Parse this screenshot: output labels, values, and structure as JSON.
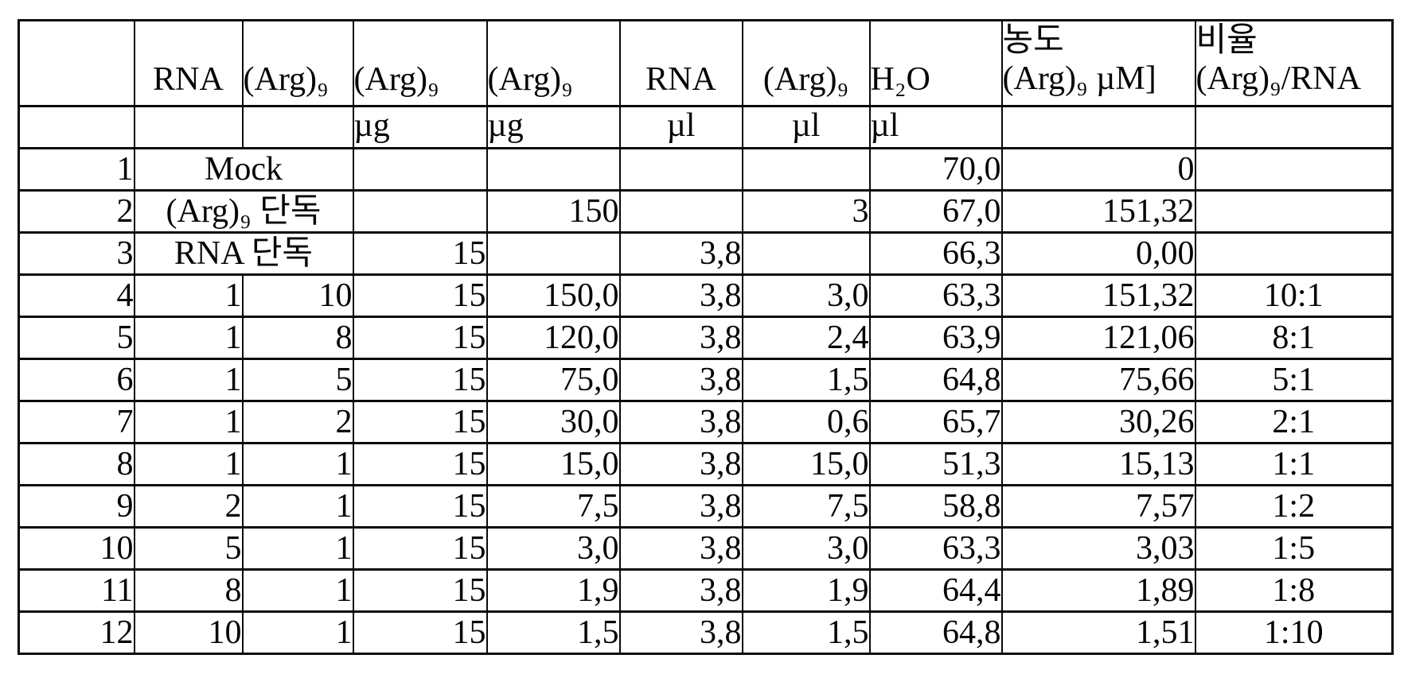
{
  "table": {
    "header": {
      "corner": "",
      "corner_units": "",
      "col_rna": "RNA",
      "col_arg9": "(Arg)₉",
      "col_arg9_ug_1": "(Arg)₉",
      "col_arg9_ug_2": "(Arg)₉",
      "col_rna_ul": "RNA",
      "col_arg9_ul": "(Arg)₉",
      "col_h2o": "H₂O",
      "col_conc_line1": "농도",
      "col_conc_line2": "(Arg)₉ µM]",
      "col_ratio_line1": "비율",
      "col_ratio_line2": "(Arg)₉/RNA",
      "units": [
        "",
        "",
        "µg",
        "µg",
        "µl",
        "µl",
        "µl",
        "",
        ""
      ]
    },
    "rows": [
      {
        "no": "1",
        "span_label": "Mock",
        "c": [
          "",
          "",
          "",
          "",
          "70,0",
          "0",
          ""
        ]
      },
      {
        "no": "2",
        "span_label": "(Arg)₉ 단독",
        "c": [
          "",
          "150",
          "",
          "3",
          "67,0",
          "151,32",
          ""
        ]
      },
      {
        "no": "3",
        "span_label": "RNA 단독",
        "c": [
          "15",
          "",
          "3,8",
          "",
          "66,3",
          "0,00",
          ""
        ]
      },
      {
        "no": "4",
        "c": [
          "1",
          "10",
          "15",
          "150,0",
          "3,8",
          "3,0",
          "63,3",
          "151,32",
          "10:1"
        ]
      },
      {
        "no": "5",
        "c": [
          "1",
          "8",
          "15",
          "120,0",
          "3,8",
          "2,4",
          "63,9",
          "121,06",
          "8:1"
        ]
      },
      {
        "no": "6",
        "c": [
          "1",
          "5",
          "15",
          "75,0",
          "3,8",
          "1,5",
          "64,8",
          "75,66",
          "5:1"
        ]
      },
      {
        "no": "7",
        "c": [
          "1",
          "2",
          "15",
          "30,0",
          "3,8",
          "0,6",
          "65,7",
          "30,26",
          "2:1"
        ]
      },
      {
        "no": "8",
        "c": [
          "1",
          "1",
          "15",
          "15,0",
          "3,8",
          "15,0",
          "51,3",
          "15,13",
          "1:1"
        ]
      },
      {
        "no": "9",
        "c": [
          "2",
          "1",
          "15",
          "7,5",
          "3,8",
          "7,5",
          "58,8",
          "7,57",
          "1:2"
        ]
      },
      {
        "no": "10",
        "c": [
          "5",
          "1",
          "15",
          "3,0",
          "3,8",
          "3,0",
          "63,3",
          "3,03",
          "1:5"
        ]
      },
      {
        "no": "11",
        "c": [
          "8",
          "1",
          "15",
          "1,9",
          "3,8",
          "1,9",
          "64,4",
          "1,89",
          "1:8"
        ]
      },
      {
        "no": "12",
        "c": [
          "10",
          "1",
          "15",
          "1,5",
          "3,8",
          "1,5",
          "64,8",
          "1,51",
          "1:10"
        ]
      }
    ]
  }
}
